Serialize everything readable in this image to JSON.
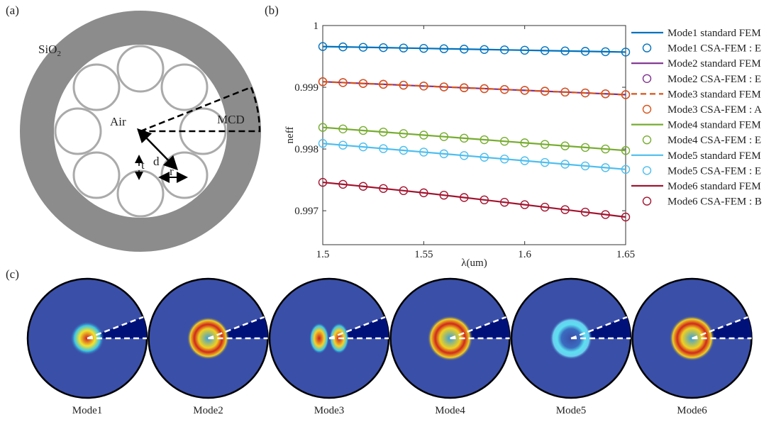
{
  "panels": {
    "a": "(a)",
    "b": "(b)",
    "c": "(c)"
  },
  "diagram": {
    "sio2": {
      "text": "SiO",
      "subscript": "2"
    },
    "air": "Air",
    "mcd": "MCD",
    "d": "d",
    "t": "t",
    "r": "r"
  },
  "chart_data": {
    "type": "line",
    "xlabel": "λ(um)",
    "ylabel": "neff",
    "x": [
      1.5,
      1.51,
      1.52,
      1.53,
      1.54,
      1.55,
      1.56,
      1.57,
      1.58,
      1.59,
      1.6,
      1.61,
      1.62,
      1.63,
      1.64,
      1.65
    ],
    "xlim": [
      1.5,
      1.65
    ],
    "ylim": [
      0.99645,
      1
    ],
    "xticks": [
      1.5,
      1.55,
      1.6,
      1.65
    ],
    "yticks": [
      0.997,
      0.998,
      0.999,
      1
    ],
    "grid": false,
    "legend": "outside-right",
    "series": [
      {
        "name": "Mode1 standard FEM",
        "color": "#0072bd",
        "style": "line",
        "dash": false,
        "values": [
          0.99966,
          0.999654,
          0.999648,
          0.999642,
          0.999636,
          0.99963,
          0.999624,
          0.999618,
          0.999612,
          0.999606,
          0.9996,
          0.999594,
          0.999588,
          0.999582,
          0.999576,
          0.99957
        ]
      },
      {
        "name": "Mode1 CSA-FEM : E",
        "color": "#0072bd",
        "style": "marker",
        "dash": false,
        "values": [
          0.99966,
          0.999654,
          0.999648,
          0.999642,
          0.999636,
          0.99963,
          0.999624,
          0.999618,
          0.999612,
          0.999606,
          0.9996,
          0.999594,
          0.999588,
          0.999582,
          0.999576,
          0.99957
        ]
      },
      {
        "name": "Mode2 standard FEM",
        "color": "#7e2f8e",
        "style": "line",
        "dash": false,
        "values": [
          0.99909,
          0.999076,
          0.999062,
          0.999048,
          0.999034,
          0.99902,
          0.999006,
          0.998992,
          0.998978,
          0.998964,
          0.99895,
          0.998936,
          0.998922,
          0.998908,
          0.998894,
          0.99888
        ]
      },
      {
        "name": "Mode2 CSA-FEM : E",
        "color": "#7e2f8e",
        "style": "marker",
        "dash": false,
        "values": [
          0.99909,
          0.999076,
          0.999062,
          0.999048,
          0.999034,
          0.99902,
          0.999006,
          0.998992,
          0.998978,
          0.998964,
          0.99895,
          0.998936,
          0.998922,
          0.998908,
          0.998894,
          0.99888
        ]
      },
      {
        "name": "Mode3 standard FEM",
        "color": "#d95319",
        "style": "line",
        "dash": true,
        "values": [
          0.99909,
          0.999076,
          0.999062,
          0.999048,
          0.999034,
          0.99902,
          0.999006,
          0.998992,
          0.998978,
          0.998964,
          0.99895,
          0.998936,
          0.998922,
          0.998908,
          0.998894,
          0.99888
        ]
      },
      {
        "name": "Mode3 CSA-FEM : A",
        "color": "#d95319",
        "style": "marker",
        "dash": false,
        "values": [
          0.99909,
          0.999076,
          0.999062,
          0.999048,
          0.999034,
          0.99902,
          0.999006,
          0.998992,
          0.998978,
          0.998964,
          0.99895,
          0.998936,
          0.998922,
          0.998908,
          0.998894,
          0.99888
        ]
      },
      {
        "name": "Mode4 standard FEM",
        "color": "#77ac30",
        "style": "line",
        "dash": false,
        "values": [
          0.99835,
          0.998325,
          0.9983,
          0.998275,
          0.99825,
          0.998225,
          0.9982,
          0.998175,
          0.99815,
          0.998125,
          0.9981,
          0.998075,
          0.99805,
          0.998025,
          0.998,
          0.997975
        ]
      },
      {
        "name": "Mode4 CSA-FEM : E",
        "color": "#77ac30",
        "style": "marker",
        "dash": false,
        "values": [
          0.99835,
          0.998325,
          0.9983,
          0.998275,
          0.99825,
          0.998225,
          0.9982,
          0.998175,
          0.99815,
          0.998125,
          0.9981,
          0.998075,
          0.99805,
          0.998025,
          0.998,
          0.997975
        ]
      },
      {
        "name": "Mode5 standard FEM",
        "color": "#4dbeee",
        "style": "line",
        "dash": false,
        "values": [
          0.99809,
          0.998062,
          0.998034,
          0.998006,
          0.997978,
          0.99795,
          0.997922,
          0.997894,
          0.997866,
          0.997838,
          0.99781,
          0.997782,
          0.997754,
          0.997726,
          0.997698,
          0.99767
        ]
      },
      {
        "name": "Mode5 CSA-FEM : E",
        "color": "#4dbeee",
        "style": "marker",
        "dash": false,
        "values": [
          0.99809,
          0.998062,
          0.998034,
          0.998006,
          0.997978,
          0.99795,
          0.997922,
          0.997894,
          0.997866,
          0.997838,
          0.99781,
          0.997782,
          0.997754,
          0.997726,
          0.997698,
          0.99767
        ]
      },
      {
        "name": "Mode6 standard FEM",
        "color": "#a2142f",
        "style": "line",
        "dash": false,
        "values": [
          0.99746,
          0.997428,
          0.997395,
          0.99736,
          0.997325,
          0.99729,
          0.997252,
          0.997214,
          0.997176,
          0.997137,
          0.997098,
          0.997058,
          0.997018,
          0.996978,
          0.996938,
          0.996898
        ]
      },
      {
        "name": "Mode6 CSA-FEM : B",
        "color": "#a2142f",
        "style": "marker",
        "dash": false,
        "values": [
          0.99746,
          0.997428,
          0.997395,
          0.99736,
          0.997325,
          0.99729,
          0.997252,
          0.997214,
          0.997176,
          0.997137,
          0.997098,
          0.997058,
          0.997018,
          0.996978,
          0.996938,
          0.996898
        ]
      }
    ]
  },
  "modes": [
    "Mode1",
    "Mode2",
    "Mode3",
    "Mode4",
    "Mode5",
    "Mode6"
  ]
}
